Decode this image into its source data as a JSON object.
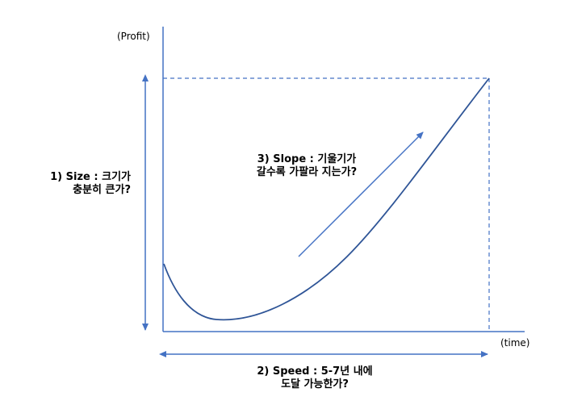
{
  "axes": {
    "y_label": "(Profit)",
    "x_label": "(time)"
  },
  "annotations": {
    "size": {
      "line1": "1) Size : 크기가",
      "line2": "충분히 큰가?"
    },
    "slope": {
      "line1": "3) Slope : 기울기가",
      "line2": "갈수록 가팔라 지는가?"
    },
    "speed": {
      "line1": "2) Speed : 5-7년 내에",
      "line2": "도달 가능한가?"
    }
  },
  "colors": {
    "axis": "#4472c4",
    "curve": "#2f5597",
    "arrow": "#4472c4",
    "guide": "#4472c4"
  }
}
